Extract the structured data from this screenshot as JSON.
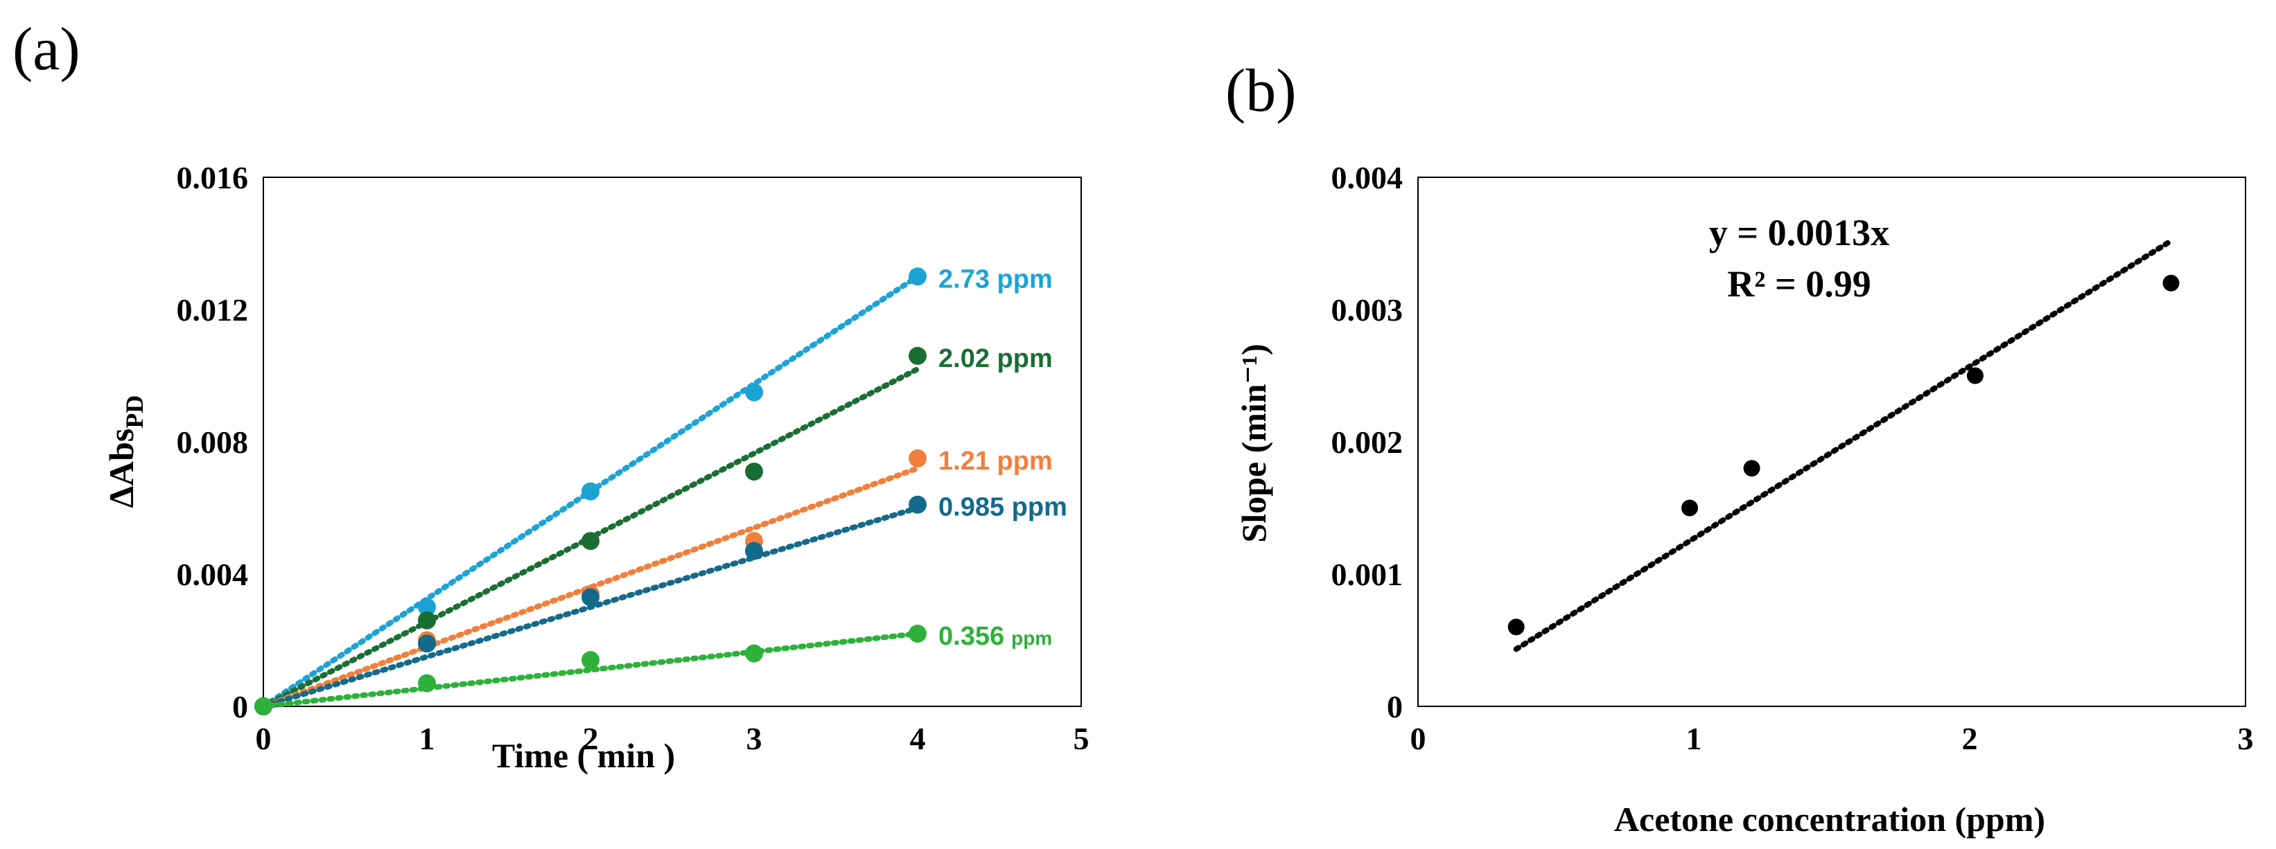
{
  "panel_labels": {
    "a": "(a)",
    "b": "(b)"
  },
  "colors": {
    "c273": "#1ba3d4",
    "c202": "#1a6e33",
    "c121": "#f07f3c",
    "c0985": "#136a8a",
    "c0356": "#2db13a",
    "black": "#000000"
  },
  "chart_data": [
    {
      "id": "a",
      "type": "scatter",
      "title": "",
      "xlabel": "Time ( min )",
      "ylabel_main": "ΔAbs",
      "ylabel_sub": "PD",
      "xlim": [
        0,
        5
      ],
      "ylim": [
        0,
        0.016
      ],
      "xticks": [
        0,
        1,
        2,
        3,
        4,
        5
      ],
      "xtick_labels": [
        "0",
        "1",
        "2",
        "3",
        "4",
        "5"
      ],
      "yticks": [
        0,
        0.004,
        0.008,
        0.012,
        0.016
      ],
      "ytick_labels": [
        "0",
        "0.004",
        "0.008",
        "0.012",
        "0.016"
      ],
      "grid": false,
      "series": [
        {
          "name": "2.73 ppm",
          "label_main": "2.73 ppm",
          "label_unit": "",
          "color_key": "c273",
          "x": [
            0,
            1,
            2,
            3,
            4
          ],
          "y": [
            0,
            0.003,
            0.0065,
            0.0095,
            0.013
          ],
          "trend": {
            "type": "linear",
            "slope": 0.00325,
            "x_range": [
              0,
              4
            ]
          }
        },
        {
          "name": "2.02 ppm",
          "label_main": "2.02 ppm",
          "label_unit": "",
          "color_key": "c202",
          "x": [
            0,
            1,
            2,
            3,
            4
          ],
          "y": [
            0,
            0.0026,
            0.005,
            0.0071,
            0.0106
          ],
          "trend": {
            "type": "linear",
            "slope": 0.00255,
            "x_range": [
              0,
              4
            ]
          }
        },
        {
          "name": "1.21 ppm",
          "label_main": "1.21 ppm",
          "label_unit": "",
          "color_key": "c121",
          "x": [
            0,
            1,
            2,
            3,
            4
          ],
          "y": [
            0,
            0.002,
            0.0034,
            0.005,
            0.0075
          ],
          "trend": {
            "type": "linear",
            "slope": 0.0018,
            "x_range": [
              0,
              4
            ]
          }
        },
        {
          "name": "0.985 ppm",
          "label_main": "0.985 ppm",
          "label_unit": "",
          "color_key": "c0985",
          "x": [
            0,
            1,
            2,
            3,
            4
          ],
          "y": [
            0,
            0.0019,
            0.0033,
            0.0047,
            0.0061
          ],
          "trend": {
            "type": "linear",
            "slope": 0.0015,
            "x_range": [
              0,
              4
            ]
          }
        },
        {
          "name": "0.356 ppm",
          "label_main": "0.356",
          "label_unit": "ppm",
          "color_key": "c0356",
          "x": [
            0,
            1,
            2,
            3,
            4
          ],
          "y": [
            0,
            0.0007,
            0.0014,
            0.0016,
            0.0022
          ],
          "trend": {
            "type": "linear",
            "slope": 0.00055,
            "x_range": [
              0,
              4
            ]
          }
        }
      ]
    },
    {
      "id": "b",
      "type": "scatter",
      "title": "",
      "xlabel": "Acetone concentration (ppm)",
      "ylabel": "Slope (min⁻¹)",
      "xlim": [
        0,
        3
      ],
      "ylim": [
        0,
        0.004
      ],
      "xticks": [
        0,
        1,
        2,
        3
      ],
      "xtick_labels": [
        "0",
        "1",
        "2",
        "3"
      ],
      "yticks": [
        0,
        0.001,
        0.002,
        0.003,
        0.004
      ],
      "ytick_labels": [
        "0",
        "0.001",
        "0.002",
        "0.003",
        "0.004"
      ],
      "grid": false,
      "series": [
        {
          "name": "data",
          "color_key": "black",
          "x": [
            0.356,
            0.985,
            1.21,
            2.02,
            2.73
          ],
          "y": [
            0.0006,
            0.0015,
            0.0018,
            0.0025,
            0.0032
          ]
        }
      ],
      "trendline": {
        "type": "linear",
        "slope": 0.0013,
        "intercept": -3e-05,
        "x_range": [
          0.356,
          2.73
        ]
      },
      "annotation": {
        "equation": "y = 0.0013x",
        "r_squared": "R² = 0.99"
      }
    }
  ]
}
